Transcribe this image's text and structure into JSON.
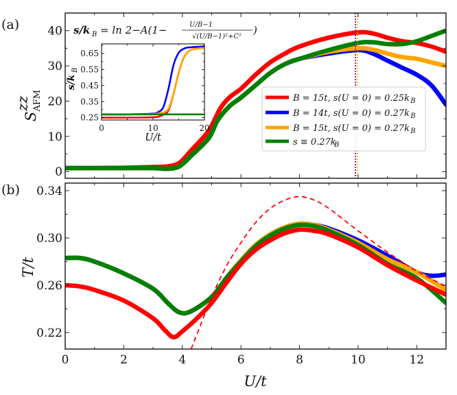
{
  "chart_data": [
    {
      "panel": "(a)",
      "type": "line",
      "title": "",
      "xlabel": "U/t",
      "ylabel": "S^zz_AFM",
      "xlim": [
        0,
        13
      ],
      "ylim": [
        -1.9,
        45
      ],
      "xticks": [
        0,
        2,
        4,
        6,
        8,
        10,
        12
      ],
      "yticks": [
        0,
        10,
        20,
        30,
        40
      ],
      "ytick_labels": [
        "0",
        "10",
        "20",
        "30",
        "40"
      ],
      "annotation": "s/k_B = ln 2 − A(1 − (U/B−1)/√((U/B−1)²+C²))",
      "annotation_parts": {
        "lhs": "s/k",
        "lhs_sub": "B",
        "rhs": "= ln 2−A(1−",
        "num": "U/B−1",
        "den": "√(U/B−1)²+C²",
        "close": ")"
      },
      "legend_position": "center-right",
      "vlines": [
        {
          "x": 9.9,
          "color": "#2222ff",
          "style": "dotted"
        },
        {
          "x": 9.92,
          "color": "#ff2222",
          "style": "dotted"
        },
        {
          "x": 9.98,
          "color": "#ffa500",
          "style": "dotted"
        }
      ],
      "series": [
        {
          "name": "B = 15t, s(U = 0) = 0.25k_B",
          "label": "B = 15t,  s(U = 0) = 0.25k",
          "label_sub": "B",
          "color": "#ff0000",
          "x": [
            0,
            1,
            2,
            3,
            3.5,
            3.9,
            4.3,
            4.8,
            5.0,
            5.3,
            5.6,
            6.0,
            6.5,
            7.0,
            7.5,
            8.0,
            9.0,
            10.0,
            10.5,
            11.0,
            11.5,
            12.0,
            12.5,
            13.0
          ],
          "y": [
            1.0,
            1.0,
            1.1,
            1.3,
            1.5,
            2.5,
            6.0,
            10.5,
            13.0,
            18.0,
            21.0,
            23.5,
            27.5,
            31.0,
            33.5,
            35.5,
            38.0,
            39.5,
            39.2,
            38.0,
            37.0,
            36.5,
            35.5,
            34.0
          ]
        },
        {
          "name": "B = 14t, s(U = 0) = 0.27k_B",
          "label": "B = 14t,  s(U = 0) = 0.27k",
          "label_sub": "B",
          "color": "#0000ff",
          "x": [
            0,
            1,
            2,
            3,
            3.5,
            3.9,
            4.3,
            4.9,
            5.2,
            5.6,
            6.0,
            6.5,
            7.0,
            7.5,
            8.0,
            9.0,
            10.0,
            10.5,
            11.0,
            11.5,
            12.0,
            12.5,
            13.0
          ],
          "y": [
            1.0,
            1.0,
            1.0,
            1.0,
            0.8,
            1.5,
            4.5,
            9.5,
            14.5,
            18.5,
            21.0,
            24.5,
            28.0,
            30.5,
            32.0,
            33.5,
            34.5,
            33.5,
            31.5,
            29.5,
            27.5,
            24.5,
            19.0
          ]
        },
        {
          "name": "B = 15t, s(U = 0) = 0.27k_B",
          "label": "B = 15t,  s(U = 0) = 0.27k",
          "label_sub": "B",
          "color": "#ffa500",
          "x": [
            0,
            1,
            2,
            3,
            3.5,
            3.9,
            4.3,
            4.9,
            5.2,
            5.6,
            6.0,
            6.5,
            7.0,
            7.5,
            8.0,
            9.0,
            10.0,
            10.5,
            11.0,
            11.5,
            12.0,
            12.5,
            13.0
          ],
          "y": [
            1.0,
            1.0,
            1.0,
            1.0,
            0.8,
            1.5,
            4.5,
            9.5,
            14.5,
            18.5,
            21.0,
            24.5,
            28.0,
            30.5,
            32.0,
            34.0,
            35.0,
            34.6,
            33.5,
            32.5,
            32.0,
            31.0,
            30.0
          ]
        },
        {
          "name": "s ≡ 0.27k_B",
          "label": "s ≡ 0.27k",
          "label_sub": "B",
          "color": "#007f00",
          "x": [
            0,
            1,
            2,
            3,
            3.5,
            3.9,
            4.3,
            4.9,
            5.2,
            5.6,
            6.0,
            6.5,
            7.0,
            7.5,
            8.0,
            9.0,
            10.0,
            10.5,
            11.0,
            11.5,
            12.0,
            12.5,
            13.0
          ],
          "y": [
            1.0,
            1.0,
            1.0,
            1.0,
            0.8,
            1.5,
            4.5,
            9.5,
            14.5,
            18.5,
            21.0,
            24.5,
            28.0,
            30.5,
            32.0,
            34.5,
            36.5,
            36.7,
            36.2,
            36.2,
            37.0,
            38.5,
            40.0
          ]
        }
      ]
    },
    {
      "panel": "(a) inset",
      "type": "line",
      "xlabel": "U/t",
      "ylabel": "s/k_B",
      "xlim": [
        0,
        20
      ],
      "ylim": [
        0.235,
        0.71
      ],
      "xticks": [
        0,
        10,
        20
      ],
      "yticks": [
        0.25,
        0.35,
        0.45,
        0.55,
        0.65
      ],
      "ytick_labels": [
        "0.25",
        "0.35",
        "0.45",
        "0.55",
        "0.65"
      ],
      "series": [
        {
          "name": "B = 15t, s(U = 0) = 0.25k_B",
          "color": "#ff0000",
          "x": [
            0,
            5,
            10,
            11,
            12,
            13,
            14,
            15,
            16,
            17,
            18,
            20
          ],
          "y": [
            0.25,
            0.25,
            0.252,
            0.256,
            0.268,
            0.295,
            0.4,
            0.53,
            0.625,
            0.665,
            0.678,
            0.685
          ]
        },
        {
          "name": "B = 14t, s(U = 0) = 0.27k_B",
          "color": "#0000ff",
          "x": [
            0,
            5,
            10,
            11,
            12,
            13,
            14,
            15,
            16,
            17,
            20
          ],
          "y": [
            0.27,
            0.27,
            0.275,
            0.285,
            0.315,
            0.43,
            0.58,
            0.655,
            0.68,
            0.688,
            0.695
          ]
        },
        {
          "name": "B = 15t, s(U = 0) = 0.27k_B",
          "color": "#ffa500",
          "x": [
            0,
            5,
            10,
            11,
            12,
            13,
            14,
            15,
            16,
            17,
            18,
            20
          ],
          "y": [
            0.27,
            0.27,
            0.272,
            0.276,
            0.283,
            0.305,
            0.4,
            0.53,
            0.625,
            0.665,
            0.678,
            0.685
          ]
        },
        {
          "name": "s ≡ 0.27k_B",
          "color": "#007f00",
          "x": [
            0,
            20
          ],
          "y": [
            0.27,
            0.27
          ]
        }
      ]
    },
    {
      "panel": "(b)",
      "type": "line",
      "xlabel": "U/t",
      "ylabel": "T/t",
      "xlim": [
        0,
        13
      ],
      "ylim": [
        0.206,
        0.3464
      ],
      "xticks": [
        0,
        2,
        4,
        6,
        8,
        10,
        12
      ],
      "xtick_labels": [
        "0",
        "2",
        "4",
        "6",
        "8",
        "10",
        "12"
      ],
      "yticks": [
        0.22,
        0.26,
        0.3,
        0.34
      ],
      "ytick_labels": [
        "0.22",
        "0.26",
        "0.30",
        "0.34"
      ],
      "series": [
        {
          "name": "B = 15t, s(U = 0) = 0.25k_B",
          "color": "#ff0000",
          "style": "solid",
          "x": [
            0,
            0.5,
            1,
            2,
            3,
            3.4,
            3.7,
            4.0,
            4.5,
            5.0,
            5.5,
            6.0,
            6.5,
            7.0,
            7.5,
            8.0,
            8.5,
            9.0,
            10.0,
            11.0,
            12.0,
            13.0
          ],
          "y": [
            0.26,
            0.259,
            0.256,
            0.247,
            0.232,
            0.222,
            0.216,
            0.221,
            0.232,
            0.245,
            0.262,
            0.278,
            0.29,
            0.298,
            0.304,
            0.307,
            0.306,
            0.303,
            0.292,
            0.277,
            0.264,
            0.252
          ]
        },
        {
          "name": "B = 14t, s(U = 0) = 0.27k_B",
          "color": "#0000ff",
          "style": "solid",
          "x": [
            0,
            0.5,
            1,
            2,
            3,
            3.5,
            3.9,
            4.3,
            5.0,
            5.5,
            6.0,
            6.5,
            7.0,
            7.5,
            8.0,
            8.5,
            9.0,
            10.0,
            11.0,
            12.0,
            12.5,
            13.0
          ],
          "y": [
            0.283,
            0.283,
            0.28,
            0.27,
            0.257,
            0.245,
            0.237,
            0.238,
            0.25,
            0.266,
            0.281,
            0.294,
            0.303,
            0.309,
            0.312,
            0.311,
            0.308,
            0.298,
            0.285,
            0.271,
            0.268,
            0.269
          ]
        },
        {
          "name": "B = 15t, s(U = 0) = 0.27k_B",
          "color": "#ffa500",
          "style": "solid",
          "x": [
            0,
            0.5,
            1,
            2,
            3,
            3.5,
            3.9,
            4.3,
            5.0,
            5.5,
            6.0,
            6.5,
            7.0,
            7.5,
            8.0,
            8.5,
            9.0,
            10.0,
            11.0,
            12.0,
            13.0
          ],
          "y": [
            0.283,
            0.283,
            0.28,
            0.27,
            0.257,
            0.245,
            0.237,
            0.238,
            0.25,
            0.266,
            0.281,
            0.294,
            0.303,
            0.309,
            0.312,
            0.311,
            0.307,
            0.296,
            0.282,
            0.271,
            0.256
          ]
        },
        {
          "name": "s ≡ 0.27k_B",
          "color": "#007f00",
          "style": "solid",
          "x": [
            0,
            0.5,
            1,
            2,
            3,
            3.5,
            3.9,
            4.3,
            5.0,
            5.5,
            6.0,
            6.5,
            7.0,
            7.5,
            8.0,
            8.5,
            9.0,
            10.0,
            11.0,
            12.0,
            13.0
          ],
          "y": [
            0.283,
            0.283,
            0.28,
            0.27,
            0.257,
            0.245,
            0.237,
            0.238,
            0.25,
            0.266,
            0.28,
            0.293,
            0.302,
            0.308,
            0.311,
            0.31,
            0.306,
            0.294,
            0.278,
            0.266,
            0.245
          ]
        },
        {
          "name": "B = 15t, s(U = 0) = 0.25k_B (dashed)",
          "color": "#ff0000",
          "style": "dashed",
          "x": [
            4.3,
            4.6,
            5.0,
            5.5,
            6.0,
            6.5,
            7.0,
            7.5,
            8.0,
            8.5,
            9.0,
            10.0,
            11.0,
            12.0,
            13.0
          ],
          "y": [
            0.206,
            0.225,
            0.25,
            0.276,
            0.296,
            0.313,
            0.325,
            0.332,
            0.335,
            0.332,
            0.325,
            0.306,
            0.288,
            0.272,
            0.259
          ]
        }
      ]
    }
  ],
  "labels": {
    "panel_a": "(a)",
    "panel_b": "(b)",
    "ylabel_a_main": "S",
    "ylabel_a_sup": "zz",
    "ylabel_a_sub": "AFM",
    "ylabel_b": "T/t",
    "xlabel": "U/t",
    "inset_xlabel": "U/t",
    "inset_ylabel": "s/k",
    "inset_ylabel_sub": "B"
  }
}
